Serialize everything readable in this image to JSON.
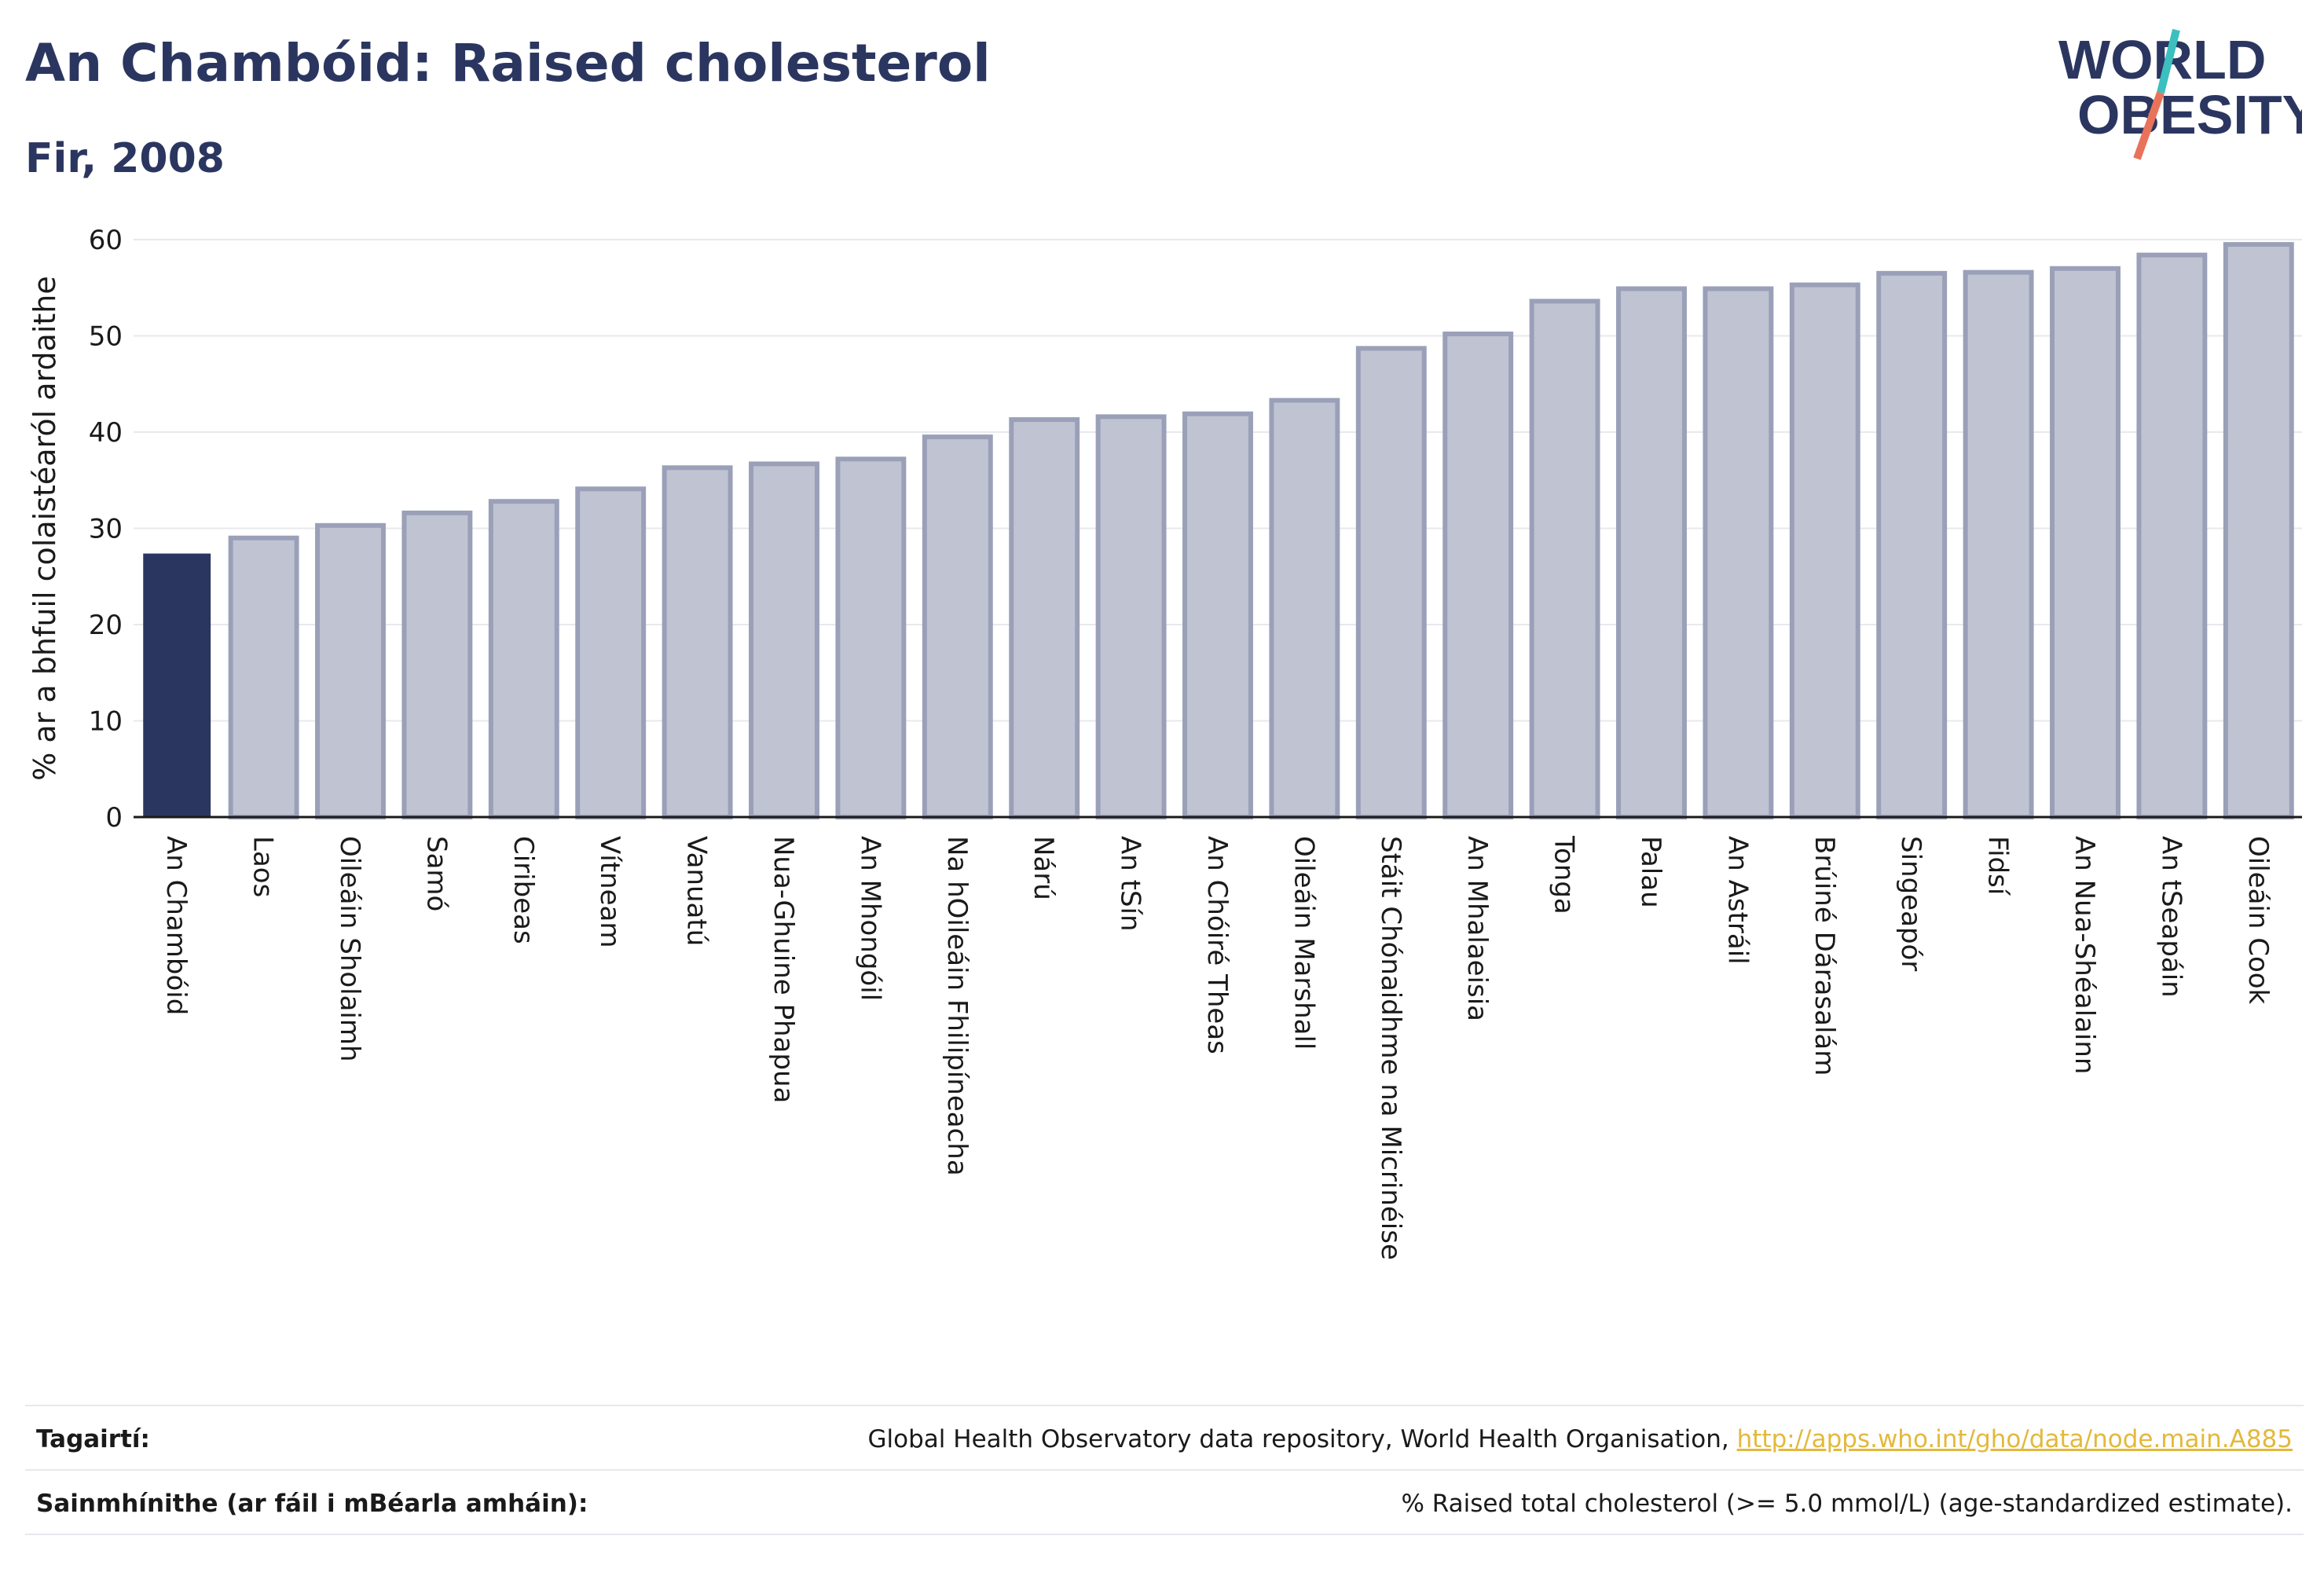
{
  "header": {
    "title": "An Chambóid: Raised cholesterol",
    "subtitle": "Fir, 2008"
  },
  "logo": {
    "line1": "WORLD",
    "line2": "OBESITY",
    "accent_colors": [
      "#3dbfbf",
      "#e8735a"
    ]
  },
  "colors": {
    "highlight_bar": "#2b3660",
    "other_bar_fill": "#c0c4d2",
    "other_bar_stroke": "#9aa0b8",
    "text": "#2b3660",
    "link": "#e2b93b"
  },
  "chart_data": {
    "type": "bar",
    "ylabel": "% ar a bhfuil colaistéaról ardaithe",
    "xlabel": "",
    "ylim": [
      0,
      60
    ],
    "yticks": [
      0,
      10,
      20,
      30,
      40,
      50,
      60
    ],
    "grid": true,
    "highlight_index": 0,
    "categories": [
      "An Chambóid",
      "Laos",
      "Oileáin Sholaimh",
      "Samó",
      "Ciribeas",
      "Vítneam",
      "Vanuatú",
      "Nua-Ghuine Phapua",
      "An Mhongóil",
      "Na hOileáin Fhilipíneacha",
      "Nárú",
      "An tSín",
      "An Chóiré Theas",
      "Oileáin Marshall",
      "Stáit Chónaidhme na Micrinéise",
      "An Mhalaeisia",
      "Tonga",
      "Palau",
      "An Astráil",
      "Brúiné Dárasalám",
      "Singeapór",
      "Fidsí",
      "An Nua-Shéalainn",
      "An tSeapáin",
      "Oileáin Cook"
    ],
    "values": [
      27.3,
      29.0,
      30.3,
      31.6,
      32.8,
      34.1,
      36.3,
      36.7,
      37.2,
      39.5,
      41.3,
      41.6,
      41.9,
      43.3,
      48.7,
      50.2,
      53.6,
      54.9,
      54.9,
      55.3,
      56.5,
      56.6,
      57.0,
      58.4,
      59.5
    ]
  },
  "footer": {
    "references_label": "Tagairtí:",
    "references_text": "Global Health Observatory data repository, World Health Organisation, ",
    "references_link": "http://apps.who.int/gho/data/node.main.A885",
    "definitions_label": "Sainmhínithe (ar fáil i mBéarla amháin):",
    "definitions_text": "% Raised total cholesterol (>= 5.0 mmol/L) (age-standardized estimate)."
  }
}
